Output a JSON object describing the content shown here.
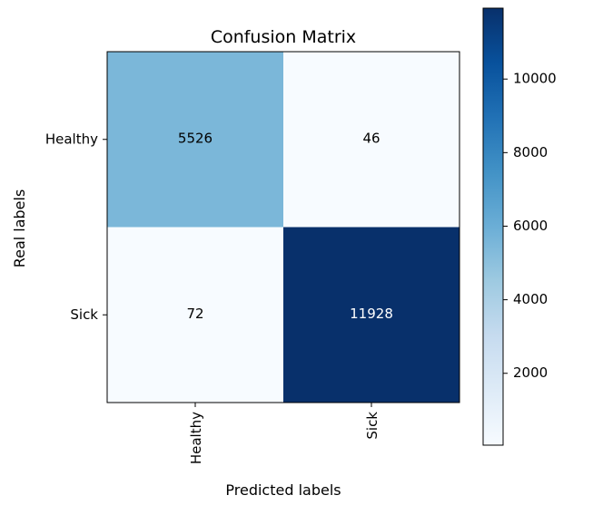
{
  "chart_data": {
    "type": "heatmap",
    "title": "Confusion Matrix",
    "xlabel": "Predicted labels",
    "ylabel": "Real labels",
    "x_categories": [
      "Healthy",
      "Sick"
    ],
    "y_categories": [
      "Healthy",
      "Sick"
    ],
    "values": [
      [
        5526,
        46
      ],
      [
        72,
        11928
      ]
    ],
    "colormap": "Blues",
    "vmin": 46,
    "vmax": 11928,
    "colorbar_ticks": [
      2000,
      4000,
      6000,
      8000,
      10000
    ],
    "colorbar_tick_labels": [
      "2000",
      "4000",
      "6000",
      "8000",
      "10000"
    ],
    "colors": {
      "low": "#f7fbff",
      "high": "#08306b",
      "text_dark": "#000000",
      "text_light": "#ffffff"
    }
  }
}
